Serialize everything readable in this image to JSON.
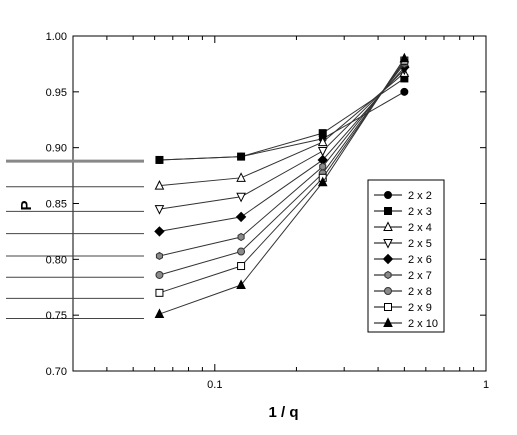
{
  "chart_data": {
    "type": "line",
    "title": "",
    "xlabel": "1 / q",
    "ylabel": "P",
    "x_scale": "log",
    "xlim": [
      0.03,
      1
    ],
    "ylim": [
      0.7,
      1.0
    ],
    "y_ticks": [
      "0.70",
      "0.75",
      "0.80",
      "0.85",
      "0.90",
      "0.95",
      "1.00"
    ],
    "x_tick_labels": [
      {
        "value": 0.1,
        "label": "0.1"
      },
      {
        "value": 1,
        "label": "1"
      }
    ],
    "grid": false,
    "legend_position": "right",
    "x": [
      0.0625,
      0.125,
      0.25,
      0.5
    ],
    "series": [
      {
        "name": "2 x 2",
        "marker": "circle-filled",
        "values": [
          0.889,
          0.892,
          0.908,
          0.95
        ]
      },
      {
        "name": "2 x 3",
        "marker": "square-filled",
        "values": [
          0.889,
          0.892,
          0.913,
          0.962
        ]
      },
      {
        "name": "2 x 4",
        "marker": "triangle-up-open",
        "values": [
          0.866,
          0.873,
          0.905,
          0.967
        ]
      },
      {
        "name": "2 x 5",
        "marker": "triangle-down-open",
        "values": [
          0.845,
          0.856,
          0.897,
          0.97
        ]
      },
      {
        "name": "2 x 6",
        "marker": "diamond-filled",
        "values": [
          0.825,
          0.838,
          0.889,
          0.972
        ]
      },
      {
        "name": "2 x 7",
        "marker": "hexagon-gray",
        "values": [
          0.803,
          0.82,
          0.883,
          0.975
        ]
      },
      {
        "name": "2 x 8",
        "marker": "circle-gray",
        "values": [
          0.786,
          0.807,
          0.877,
          0.977
        ]
      },
      {
        "name": "2 x 9",
        "marker": "square-open",
        "values": [
          0.77,
          0.794,
          0.873,
          0.978
        ]
      },
      {
        "name": "2 x 10",
        "marker": "triangle-up-filled",
        "values": [
          0.751,
          0.777,
          0.869,
          0.98
        ]
      }
    ],
    "reference_levels": [
      0.888,
      0.865,
      0.843,
      0.823,
      0.803,
      0.784,
      0.765,
      0.747
    ]
  }
}
